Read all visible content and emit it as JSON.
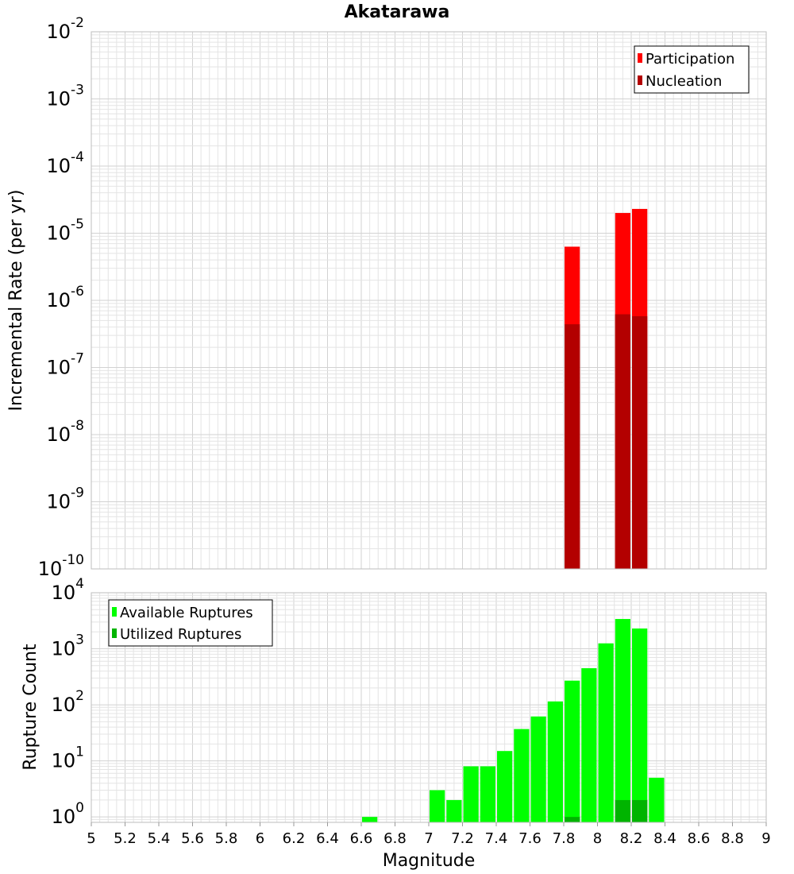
{
  "title": "Akatarawa",
  "colors": {
    "participation": "#ff0000",
    "nucleation": "#b30000",
    "available": "#00ff00",
    "utilized": "#00b400"
  },
  "chart_data": [
    {
      "type": "bar",
      "name": "rate-panel",
      "yscale": "log",
      "ylabel": "Incremental Rate (per yr)",
      "xlabel": "",
      "xlim": [
        5,
        9
      ],
      "ylim": [
        1e-10,
        0.01
      ],
      "y_ticks": [
        {
          "base": "10",
          "exp": "-10",
          "value": 1e-10
        },
        {
          "base": "10",
          "exp": "-9",
          "value": 1e-09
        },
        {
          "base": "10",
          "exp": "-8",
          "value": 1e-08
        },
        {
          "base": "10",
          "exp": "-7",
          "value": 1e-07
        },
        {
          "base": "10",
          "exp": "-6",
          "value": 1e-06
        },
        {
          "base": "10",
          "exp": "-5",
          "value": 1e-05
        },
        {
          "base": "10",
          "exp": "-4",
          "value": 0.0001
        },
        {
          "base": "10",
          "exp": "-3",
          "value": 0.001
        },
        {
          "base": "10",
          "exp": "-2",
          "value": 0.01
        }
      ],
      "legend": [
        "Participation",
        "Nucleation"
      ],
      "series": [
        {
          "name": "Participation",
          "x": [
            7.85,
            8.15,
            8.25
          ],
          "values": [
            6.3e-06,
            2e-05,
            2.3e-05
          ]
        },
        {
          "name": "Nucleation",
          "x": [
            7.85,
            8.15,
            8.25
          ],
          "values": [
            4.4e-07,
            6.2e-07,
            5.8e-07
          ]
        }
      ]
    },
    {
      "type": "bar",
      "name": "count-panel",
      "yscale": "log",
      "ylabel": "Rupture Count",
      "xlabel": "Magnitude",
      "xlim": [
        5,
        9
      ],
      "ylim": [
        0.8,
        10000
      ],
      "y_ticks": [
        {
          "base": "10",
          "exp": "0",
          "value": 1
        },
        {
          "base": "10",
          "exp": "1",
          "value": 10
        },
        {
          "base": "10",
          "exp": "2",
          "value": 100
        },
        {
          "base": "10",
          "exp": "3",
          "value": 1000
        },
        {
          "base": "10",
          "exp": "4",
          "value": 10000
        }
      ],
      "x_ticks": [
        "5",
        "5.2",
        "5.4",
        "5.6",
        "5.8",
        "6",
        "6.2",
        "6.4",
        "6.6",
        "6.8",
        "7",
        "7.2",
        "7.4",
        "7.6",
        "7.8",
        "8",
        "8.2",
        "8.4",
        "8.6",
        "8.8",
        "9"
      ],
      "legend": [
        "Available Ruptures",
        "Utilized Ruptures"
      ],
      "series": [
        {
          "name": "Available Ruptures",
          "x": [
            6.65,
            7.05,
            7.15,
            7.25,
            7.35,
            7.45,
            7.55,
            7.65,
            7.75,
            7.85,
            7.95,
            8.05,
            8.15,
            8.25,
            8.35
          ],
          "values": [
            1,
            3,
            2,
            8,
            8,
            15,
            37,
            62,
            115,
            270,
            450,
            1250,
            3400,
            2300,
            5
          ]
        },
        {
          "name": "Utilized Ruptures",
          "x": [
            7.85,
            8.15,
            8.25
          ],
          "values": [
            1,
            2,
            2
          ]
        }
      ]
    }
  ]
}
